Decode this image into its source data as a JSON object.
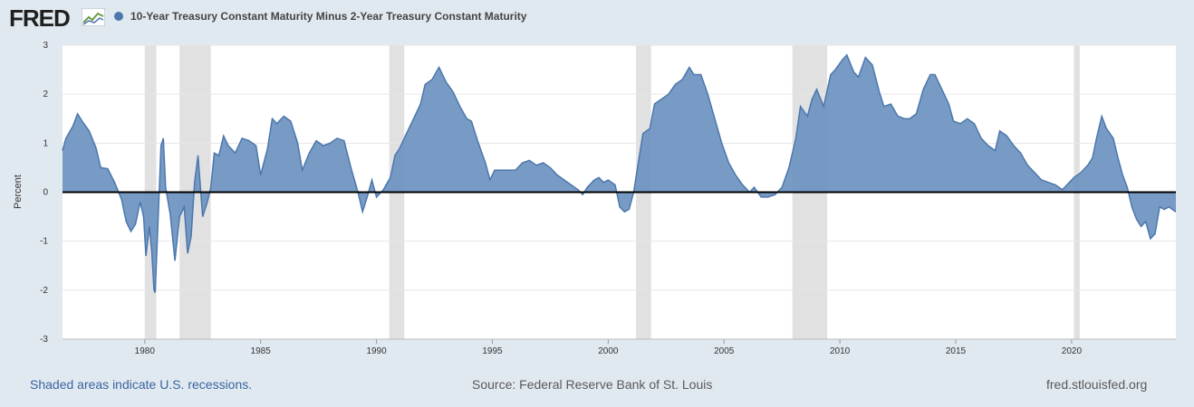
{
  "header": {
    "logo_text": "FRED",
    "logo_icon": "fred-graph-icon",
    "legend_label": "10-Year Treasury Constant Maturity Minus 2-Year Treasury Constant Maturity"
  },
  "colors": {
    "series": "#4c77ac",
    "series_fill": "#6b92bf",
    "recession": "#e1e1e1",
    "plot_bg": "#ffffff",
    "page_bg": "#e1e9f0",
    "zero_line": "#000000"
  },
  "footer": {
    "left": "Shaded areas indicate U.S. recessions.",
    "center": "Source: Federal Reserve Bank of St. Louis",
    "right": "fred.stlouisfed.org"
  },
  "chart_data": {
    "type": "area",
    "title": "",
    "xlabel": "",
    "ylabel": "Percent",
    "xlim": [
      1976.45,
      2024.5
    ],
    "ylim": [
      -3,
      3
    ],
    "yticks": [
      -3,
      -2,
      -1,
      0,
      1,
      2,
      3
    ],
    "xticks": [
      1980,
      1985,
      1990,
      1995,
      2000,
      2005,
      2010,
      2015,
      2020
    ],
    "grid": true,
    "legend": "top-left",
    "recessions": [
      [
        1980.0,
        1980.5
      ],
      [
        1981.5,
        1982.85
      ],
      [
        1990.55,
        1991.2
      ],
      [
        2001.2,
        2001.85
      ],
      [
        2007.95,
        2009.45
      ],
      [
        2020.1,
        2020.35
      ]
    ],
    "series": [
      {
        "name": "10-Year Treasury Constant Maturity Minus 2-Year Treasury Constant Maturity",
        "points": [
          [
            1976.45,
            0.85
          ],
          [
            1976.6,
            1.1
          ],
          [
            1976.9,
            1.35
          ],
          [
            1977.1,
            1.6
          ],
          [
            1977.3,
            1.45
          ],
          [
            1977.6,
            1.25
          ],
          [
            1977.9,
            0.9
          ],
          [
            1978.1,
            0.5
          ],
          [
            1978.4,
            0.48
          ],
          [
            1978.7,
            0.2
          ],
          [
            1979.0,
            -0.15
          ],
          [
            1979.2,
            -0.6
          ],
          [
            1979.4,
            -0.8
          ],
          [
            1979.6,
            -0.65
          ],
          [
            1979.8,
            -0.2
          ],
          [
            1979.95,
            -0.5
          ],
          [
            1980.05,
            -1.3
          ],
          [
            1980.2,
            -0.7
          ],
          [
            1980.3,
            -1.2
          ],
          [
            1980.4,
            -2.0
          ],
          [
            1980.45,
            -2.05
          ],
          [
            1980.6,
            -0.3
          ],
          [
            1980.7,
            0.95
          ],
          [
            1980.8,
            1.1
          ],
          [
            1980.9,
            0.1
          ],
          [
            1981.1,
            -0.45
          ],
          [
            1981.3,
            -1.4
          ],
          [
            1981.5,
            -0.5
          ],
          [
            1981.7,
            -0.3
          ],
          [
            1981.85,
            -1.25
          ],
          [
            1982.0,
            -0.9
          ],
          [
            1982.15,
            0.2
          ],
          [
            1982.3,
            0.75
          ],
          [
            1982.5,
            -0.5
          ],
          [
            1982.7,
            -0.2
          ],
          [
            1982.85,
            0.1
          ],
          [
            1983.0,
            0.8
          ],
          [
            1983.2,
            0.75
          ],
          [
            1983.4,
            1.15
          ],
          [
            1983.6,
            0.95
          ],
          [
            1983.9,
            0.8
          ],
          [
            1984.2,
            1.1
          ],
          [
            1984.5,
            1.05
          ],
          [
            1984.8,
            0.95
          ],
          [
            1985.0,
            0.35
          ],
          [
            1985.3,
            0.9
          ],
          [
            1985.5,
            1.5
          ],
          [
            1985.7,
            1.4
          ],
          [
            1986.0,
            1.55
          ],
          [
            1986.3,
            1.45
          ],
          [
            1986.6,
            1.0
          ],
          [
            1986.8,
            0.45
          ],
          [
            1987.1,
            0.8
          ],
          [
            1987.4,
            1.05
          ],
          [
            1987.7,
            0.95
          ],
          [
            1988.0,
            1.0
          ],
          [
            1988.3,
            1.1
          ],
          [
            1988.6,
            1.05
          ],
          [
            1988.9,
            0.5
          ],
          [
            1989.2,
            0.0
          ],
          [
            1989.4,
            -0.4
          ],
          [
            1989.6,
            -0.1
          ],
          [
            1989.8,
            0.25
          ],
          [
            1990.0,
            -0.1
          ],
          [
            1990.3,
            0.05
          ],
          [
            1990.6,
            0.3
          ],
          [
            1990.8,
            0.75
          ],
          [
            1991.0,
            0.9
          ],
          [
            1991.3,
            1.2
          ],
          [
            1991.6,
            1.5
          ],
          [
            1991.9,
            1.8
          ],
          [
            1992.1,
            2.2
          ],
          [
            1992.4,
            2.3
          ],
          [
            1992.7,
            2.55
          ],
          [
            1993.0,
            2.25
          ],
          [
            1993.3,
            2.05
          ],
          [
            1993.6,
            1.75
          ],
          [
            1993.9,
            1.5
          ],
          [
            1994.1,
            1.45
          ],
          [
            1994.4,
            1.0
          ],
          [
            1994.7,
            0.6
          ],
          [
            1994.9,
            0.25
          ],
          [
            1995.1,
            0.45
          ],
          [
            1995.4,
            0.45
          ],
          [
            1995.7,
            0.45
          ],
          [
            1996.0,
            0.45
          ],
          [
            1996.3,
            0.6
          ],
          [
            1996.6,
            0.65
          ],
          [
            1996.9,
            0.55
          ],
          [
            1997.2,
            0.6
          ],
          [
            1997.5,
            0.5
          ],
          [
            1997.8,
            0.35
          ],
          [
            1998.1,
            0.25
          ],
          [
            1998.4,
            0.15
          ],
          [
            1998.7,
            0.05
          ],
          [
            1998.9,
            -0.05
          ],
          [
            1999.1,
            0.1
          ],
          [
            1999.4,
            0.25
          ],
          [
            1999.6,
            0.3
          ],
          [
            1999.8,
            0.2
          ],
          [
            2000.0,
            0.25
          ],
          [
            2000.3,
            0.15
          ],
          [
            2000.5,
            -0.3
          ],
          [
            2000.7,
            -0.4
          ],
          [
            2000.9,
            -0.35
          ],
          [
            2001.1,
            0.0
          ],
          [
            2001.3,
            0.6
          ],
          [
            2001.5,
            1.2
          ],
          [
            2001.8,
            1.3
          ],
          [
            2002.0,
            1.8
          ],
          [
            2002.3,
            1.9
          ],
          [
            2002.6,
            2.0
          ],
          [
            2002.9,
            2.2
          ],
          [
            2003.2,
            2.3
          ],
          [
            2003.5,
            2.55
          ],
          [
            2003.7,
            2.4
          ],
          [
            2004.0,
            2.4
          ],
          [
            2004.3,
            2.0
          ],
          [
            2004.6,
            1.5
          ],
          [
            2004.9,
            1.0
          ],
          [
            2005.2,
            0.6
          ],
          [
            2005.5,
            0.35
          ],
          [
            2005.8,
            0.15
          ],
          [
            2006.1,
            0.0
          ],
          [
            2006.3,
            0.1
          ],
          [
            2006.6,
            -0.1
          ],
          [
            2006.9,
            -0.1
          ],
          [
            2007.2,
            -0.05
          ],
          [
            2007.5,
            0.1
          ],
          [
            2007.8,
            0.5
          ],
          [
            2008.1,
            1.1
          ],
          [
            2008.3,
            1.75
          ],
          [
            2008.6,
            1.55
          ],
          [
            2008.8,
            1.9
          ],
          [
            2009.0,
            2.1
          ],
          [
            2009.3,
            1.75
          ],
          [
            2009.6,
            2.4
          ],
          [
            2009.8,
            2.5
          ],
          [
            2010.1,
            2.7
          ],
          [
            2010.3,
            2.8
          ],
          [
            2010.6,
            2.45
          ],
          [
            2010.8,
            2.35
          ],
          [
            2011.1,
            2.75
          ],
          [
            2011.4,
            2.6
          ],
          [
            2011.7,
            2.05
          ],
          [
            2011.9,
            1.75
          ],
          [
            2012.2,
            1.8
          ],
          [
            2012.5,
            1.55
          ],
          [
            2012.8,
            1.5
          ],
          [
            2013.0,
            1.5
          ],
          [
            2013.3,
            1.6
          ],
          [
            2013.6,
            2.1
          ],
          [
            2013.9,
            2.4
          ],
          [
            2014.1,
            2.4
          ],
          [
            2014.4,
            2.1
          ],
          [
            2014.7,
            1.8
          ],
          [
            2014.9,
            1.45
          ],
          [
            2015.2,
            1.4
          ],
          [
            2015.5,
            1.5
          ],
          [
            2015.8,
            1.4
          ],
          [
            2016.1,
            1.1
          ],
          [
            2016.4,
            0.95
          ],
          [
            2016.7,
            0.85
          ],
          [
            2016.9,
            1.25
          ],
          [
            2017.2,
            1.15
          ],
          [
            2017.5,
            0.95
          ],
          [
            2017.8,
            0.8
          ],
          [
            2018.1,
            0.55
          ],
          [
            2018.4,
            0.4
          ],
          [
            2018.7,
            0.25
          ],
          [
            2019.0,
            0.2
          ],
          [
            2019.3,
            0.15
          ],
          [
            2019.6,
            0.05
          ],
          [
            2019.8,
            0.15
          ],
          [
            2020.1,
            0.3
          ],
          [
            2020.4,
            0.4
          ],
          [
            2020.7,
            0.55
          ],
          [
            2020.9,
            0.7
          ],
          [
            2021.1,
            1.15
          ],
          [
            2021.3,
            1.55
          ],
          [
            2021.5,
            1.3
          ],
          [
            2021.8,
            1.1
          ],
          [
            2022.0,
            0.7
          ],
          [
            2022.2,
            0.35
          ],
          [
            2022.4,
            0.1
          ],
          [
            2022.6,
            -0.3
          ],
          [
            2022.8,
            -0.55
          ],
          [
            2023.0,
            -0.7
          ],
          [
            2023.2,
            -0.6
          ],
          [
            2023.4,
            -0.95
          ],
          [
            2023.6,
            -0.85
          ],
          [
            2023.8,
            -0.3
          ],
          [
            2024.0,
            -0.35
          ],
          [
            2024.2,
            -0.3
          ],
          [
            2024.5,
            -0.4
          ]
        ]
      }
    ]
  }
}
